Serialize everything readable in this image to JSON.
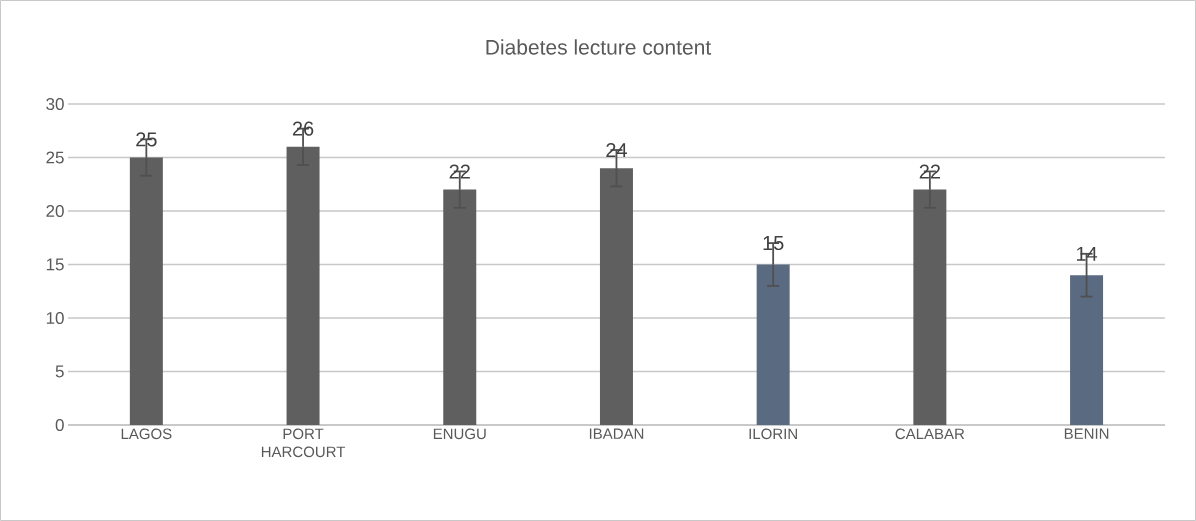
{
  "chart_data": {
    "type": "bar",
    "title": "Diabetes lecture content",
    "categories": [
      "LAGOS",
      "PORT HARCOURT",
      "ENUGU",
      "IBADAN",
      "ILORIN",
      "CALABAR",
      "BENIN"
    ],
    "values": [
      25,
      26,
      22,
      24,
      15,
      22,
      14
    ],
    "errors": [
      1.7,
      1.7,
      1.7,
      1.7,
      2,
      1.7,
      2
    ],
    "colors": [
      "#5f5f5f",
      "#5f5f5f",
      "#5f5f5f",
      "#5f5f5f",
      "#5a6a80",
      "#5f5f5f",
      "#5a6a80"
    ],
    "value_labels": [
      "25",
      "26",
      "22",
      "24",
      "15",
      "22",
      "14"
    ],
    "ylim": [
      0,
      30
    ],
    "yticks": [
      0,
      5,
      10,
      15,
      20,
      25,
      30
    ],
    "grid": "y"
  }
}
